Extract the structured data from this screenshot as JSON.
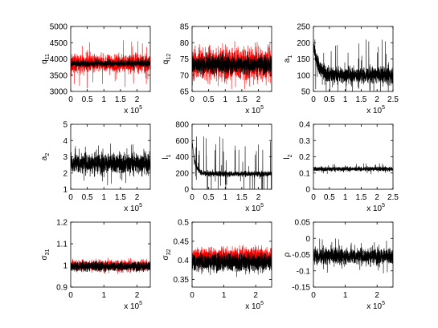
{
  "chart_data": [
    {
      "type": "line",
      "ylabel": "q",
      "ylabel_sub": "11",
      "xlim": [
        0,
        240000
      ],
      "ylim": [
        3000,
        5000
      ],
      "x_ticks": [
        0,
        50000,
        100000,
        150000,
        200000
      ],
      "x_tick_labels": [
        "0",
        "0.5",
        "1",
        "1.5",
        "2"
      ],
      "y_ticks": [
        3000,
        3500,
        4000,
        4500,
        5000
      ],
      "y_tick_labels": [
        "3000",
        "3500",
        "4000",
        "4500",
        "5000"
      ],
      "exponent_base": "x 10",
      "exponent": "5",
      "series": [
        {
          "color": "#ff0000",
          "x_range": [
            0,
            240000
          ],
          "center": 3860,
          "spread": 230,
          "peak_max": 4650
        },
        {
          "color": "#000000",
          "x_range": [
            0,
            240000
          ],
          "center": 3860,
          "spread": 90,
          "peak_max": 4100
        }
      ]
    },
    {
      "type": "line",
      "ylabel": "q",
      "ylabel_sub": "12",
      "xlim": [
        0,
        240000
      ],
      "ylim": [
        65,
        85
      ],
      "x_ticks": [
        0,
        50000,
        100000,
        150000,
        200000
      ],
      "x_tick_labels": [
        "0",
        "0.5",
        "1",
        "1.5",
        "2"
      ],
      "y_ticks": [
        65,
        70,
        75,
        80,
        85
      ],
      "y_tick_labels": [
        "65",
        "70",
        "75",
        "80",
        "85"
      ],
      "exponent_base": "x 10",
      "exponent": "5",
      "series": [
        {
          "color": "#ff0000",
          "x_range": [
            0,
            240000
          ],
          "center": 73.5,
          "spread": 4.5,
          "peak_max": 81.5
        },
        {
          "color": "#000000",
          "x_range": [
            0,
            240000
          ],
          "center": 73.2,
          "spread": 2.5,
          "peak_max": 77
        }
      ]
    },
    {
      "type": "line",
      "ylabel": "a",
      "ylabel_sub": "1",
      "xlim": [
        0,
        250000
      ],
      "ylim": [
        50,
        250
      ],
      "x_ticks": [
        0,
        50000,
        100000,
        150000,
        200000,
        250000
      ],
      "x_tick_labels": [
        "0",
        "0.5",
        "1",
        "1.5",
        "2",
        "2.5"
      ],
      "y_ticks": [
        50,
        100,
        150,
        200,
        250
      ],
      "y_tick_labels": [
        "50",
        "100",
        "150",
        "200",
        "250"
      ],
      "exponent_base": "x 10",
      "exponent": "5",
      "series": [
        {
          "color": "#000000",
          "x_range": [
            0,
            250000
          ],
          "center": 100,
          "spread": 22,
          "start": 190,
          "decay": 15000,
          "peak_max": 210
        }
      ]
    },
    {
      "type": "line",
      "ylabel": "a",
      "ylabel_sub": "2",
      "xlim": [
        0,
        240000
      ],
      "ylim": [
        1,
        5
      ],
      "x_ticks": [
        0,
        50000,
        100000,
        150000,
        200000
      ],
      "x_tick_labels": [
        "0",
        "0.5",
        "1",
        "1.5",
        "2"
      ],
      "y_ticks": [
        1,
        2,
        3,
        4,
        5
      ],
      "y_tick_labels": [
        "1",
        "2",
        "3",
        "4",
        "5"
      ],
      "exponent_base": "x 10",
      "exponent": "5",
      "series": [
        {
          "color": "#000000",
          "x_range": [
            0,
            240000
          ],
          "center": 2.6,
          "spread": 0.55,
          "peak_max": 4.0
        }
      ]
    },
    {
      "type": "line",
      "ylabel": "l",
      "ylabel_sub": "1",
      "xlim": [
        0,
        240000
      ],
      "ylim": [
        0,
        800
      ],
      "x_ticks": [
        0,
        50000,
        100000,
        150000,
        200000
      ],
      "x_tick_labels": [
        "0",
        "0.5",
        "1",
        "1.5",
        "2"
      ],
      "y_ticks": [
        0,
        200,
        400,
        600,
        800
      ],
      "y_tick_labels": [
        "0",
        "200",
        "400",
        "600",
        "800"
      ],
      "exponent_base": "x 10",
      "exponent": "5",
      "series": [
        {
          "color": "#000000",
          "x_range": [
            0,
            240000
          ],
          "center": 190,
          "spread": 30,
          "start": 600,
          "decay": 9000,
          "peak_max": 650
        }
      ]
    },
    {
      "type": "line",
      "ylabel": "l",
      "ylabel_sub": "2",
      "xlim": [
        0,
        250000
      ],
      "ylim": [
        0,
        0.4
      ],
      "x_ticks": [
        0,
        50000,
        100000,
        150000,
        200000,
        250000
      ],
      "x_tick_labels": [
        "0",
        "0.5",
        "1",
        "1.5",
        "2",
        "2.5"
      ],
      "y_ticks": [
        0,
        0.1,
        0.2,
        0.3,
        0.4
      ],
      "y_tick_labels": [
        "0",
        "0.1",
        "0.2",
        "0.3",
        "0.4"
      ],
      "exponent_base": "x 10",
      "exponent": "5",
      "series": [
        {
          "color": "#000000",
          "x_range": [
            0,
            250000
          ],
          "center": 0.125,
          "spread": 0.012,
          "peak_max": 0.16
        }
      ]
    },
    {
      "type": "line",
      "ylabel": "σ",
      "ylabel_sub": "31",
      "xlim": [
        0,
        240000
      ],
      "ylim": [
        0.9,
        1.2
      ],
      "x_ticks": [
        0,
        100000,
        200000
      ],
      "x_tick_labels": [
        "0",
        "1",
        "2"
      ],
      "y_ticks": [
        0.9,
        1.0,
        1.1,
        1.2
      ],
      "y_tick_labels": [
        "0.9",
        "1",
        "1.1",
        "1.2"
      ],
      "exponent_base": "x 10",
      "exponent": "5",
      "series": [
        {
          "color": "#ff0000",
          "x_range": [
            0,
            240000
          ],
          "center": 1.0,
          "spread": 0.022,
          "peak_max": 1.04
        },
        {
          "color": "#000000",
          "x_range": [
            0,
            240000
          ],
          "center": 0.995,
          "spread": 0.02,
          "peak_max": 1.02
        }
      ]
    },
    {
      "type": "line",
      "ylabel": "σ",
      "ylabel_sub": "32",
      "xlim": [
        0,
        250000
      ],
      "ylim": [
        0.33,
        0.5
      ],
      "x_ticks": [
        0,
        100000,
        200000
      ],
      "x_tick_labels": [
        "0",
        "1",
        "2"
      ],
      "y_ticks": [
        0.35,
        0.4,
        0.45,
        0.5
      ],
      "y_tick_labels": [
        "0.35",
        "0.4",
        "0.45",
        "0.5"
      ],
      "exponent_base": "x 10",
      "exponent": "5",
      "series": [
        {
          "color": "#ff0000",
          "x_range": [
            0,
            250000
          ],
          "center": 0.41,
          "spread": 0.02,
          "peak_max": 0.44
        },
        {
          "color": "#000000",
          "x_range": [
            0,
            250000
          ],
          "center": 0.395,
          "spread": 0.022,
          "peak_max": 0.42
        }
      ]
    },
    {
      "type": "line",
      "ylabel": "ρ",
      "ylabel_sub": "",
      "xlim": [
        0,
        250000
      ],
      "ylim": [
        -0.15,
        0.05
      ],
      "x_ticks": [
        0,
        100000,
        200000
      ],
      "x_tick_labels": [
        "0",
        "1",
        "2"
      ],
      "y_ticks": [
        -0.15,
        -0.1,
        -0.05,
        0,
        0.05
      ],
      "y_tick_labels": [
        "-0.15",
        "-0.1",
        "-0.05",
        "0",
        "0.05"
      ],
      "exponent_base": "x 10",
      "exponent": "5",
      "series": [
        {
          "color": "#000000",
          "x_range": [
            0,
            250000
          ],
          "center": -0.055,
          "spread": 0.022,
          "peak_max": 0.0
        }
      ]
    }
  ]
}
